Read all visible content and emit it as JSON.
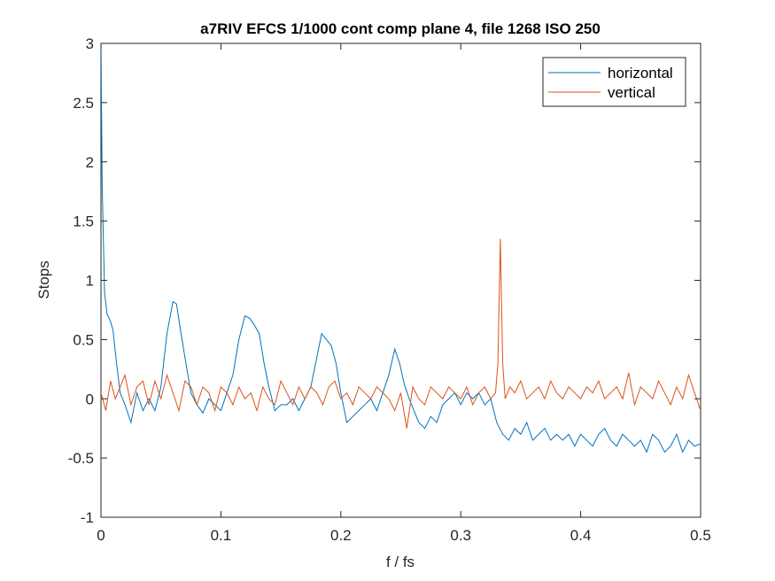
{
  "chart_data": {
    "type": "line",
    "title": "a7RIV EFCS 1/1000 cont comp plane 4, file 1268 ISO 250",
    "xlabel": "f / fs",
    "ylabel": "Stops",
    "xlim": [
      0,
      0.5
    ],
    "ylim": [
      -1,
      3
    ],
    "x_ticks": [
      0,
      0.1,
      0.2,
      0.3,
      0.4,
      0.5
    ],
    "x_tick_labels": [
      "0",
      "0.1",
      "0.2",
      "0.3",
      "0.4",
      "0.5"
    ],
    "y_ticks": [
      -1,
      -0.5,
      0,
      0.5,
      1,
      1.5,
      2,
      2.5,
      3
    ],
    "y_tick_labels": [
      "-1",
      "-0.5",
      "0",
      "0.5",
      "1",
      "1.5",
      "2",
      "2.5",
      "3"
    ],
    "grid": false,
    "legend_position": "top-right",
    "series": [
      {
        "name": "horizontal",
        "color": "#0072BD",
        "x": [
          0,
          0.001,
          0.003,
          0.005,
          0.008,
          0.01,
          0.013,
          0.016,
          0.02,
          0.025,
          0.03,
          0.035,
          0.04,
          0.045,
          0.05,
          0.055,
          0.06,
          0.063,
          0.066,
          0.07,
          0.075,
          0.08,
          0.085,
          0.09,
          0.095,
          0.1,
          0.105,
          0.11,
          0.115,
          0.12,
          0.124,
          0.128,
          0.132,
          0.136,
          0.14,
          0.145,
          0.15,
          0.155,
          0.16,
          0.165,
          0.17,
          0.175,
          0.18,
          0.184,
          0.188,
          0.192,
          0.196,
          0.2,
          0.205,
          0.21,
          0.215,
          0.22,
          0.225,
          0.23,
          0.235,
          0.24,
          0.245,
          0.249,
          0.253,
          0.257,
          0.261,
          0.265,
          0.27,
          0.275,
          0.28,
          0.285,
          0.29,
          0.295,
          0.3,
          0.305,
          0.31,
          0.315,
          0.32,
          0.325,
          0.33,
          0.335,
          0.34,
          0.345,
          0.35,
          0.355,
          0.36,
          0.365,
          0.37,
          0.375,
          0.38,
          0.385,
          0.39,
          0.395,
          0.4,
          0.405,
          0.41,
          0.415,
          0.42,
          0.425,
          0.43,
          0.435,
          0.44,
          0.445,
          0.45,
          0.455,
          0.46,
          0.465,
          0.47,
          0.475,
          0.48,
          0.485,
          0.49,
          0.495,
          0.5
        ],
        "y": [
          3,
          1.8,
          0.9,
          0.72,
          0.65,
          0.58,
          0.3,
          0.05,
          -0.05,
          -0.2,
          0.05,
          -0.1,
          0.0,
          -0.1,
          0.1,
          0.55,
          0.82,
          0.8,
          0.6,
          0.35,
          0.05,
          -0.05,
          -0.12,
          0.0,
          -0.05,
          -0.1,
          0.05,
          0.2,
          0.5,
          0.7,
          0.68,
          0.62,
          0.55,
          0.3,
          0.1,
          -0.1,
          -0.05,
          -0.05,
          0.0,
          -0.1,
          0.0,
          0.1,
          0.35,
          0.55,
          0.5,
          0.45,
          0.3,
          0.05,
          -0.2,
          -0.15,
          -0.1,
          -0.05,
          0.0,
          -0.1,
          0.05,
          0.2,
          0.42,
          0.3,
          0.12,
          0.0,
          -0.1,
          -0.2,
          -0.25,
          -0.15,
          -0.2,
          -0.05,
          0.0,
          0.05,
          -0.05,
          0.05,
          0.0,
          0.05,
          -0.05,
          0.0,
          -0.2,
          -0.3,
          -0.35,
          -0.25,
          -0.3,
          -0.2,
          -0.35,
          -0.3,
          -0.25,
          -0.35,
          -0.3,
          -0.35,
          -0.3,
          -0.4,
          -0.3,
          -0.35,
          -0.4,
          -0.3,
          -0.25,
          -0.35,
          -0.4,
          -0.3,
          -0.35,
          -0.4,
          -0.35,
          -0.45,
          -0.3,
          -0.35,
          -0.45,
          -0.4,
          -0.3,
          -0.45,
          -0.35,
          -0.4,
          -0.38
        ]
      },
      {
        "name": "vertical",
        "color": "#D95319",
        "x": [
          0,
          0.004,
          0.008,
          0.012,
          0.016,
          0.02,
          0.025,
          0.03,
          0.035,
          0.04,
          0.045,
          0.05,
          0.055,
          0.06,
          0.065,
          0.07,
          0.075,
          0.08,
          0.085,
          0.09,
          0.095,
          0.1,
          0.105,
          0.11,
          0.115,
          0.12,
          0.125,
          0.13,
          0.135,
          0.14,
          0.145,
          0.15,
          0.155,
          0.16,
          0.165,
          0.17,
          0.175,
          0.18,
          0.185,
          0.19,
          0.195,
          0.2,
          0.205,
          0.21,
          0.215,
          0.22,
          0.225,
          0.23,
          0.235,
          0.24,
          0.245,
          0.25,
          0.255,
          0.26,
          0.265,
          0.27,
          0.275,
          0.28,
          0.285,
          0.29,
          0.295,
          0.3,
          0.305,
          0.31,
          0.315,
          0.32,
          0.325,
          0.329,
          0.331,
          0.333,
          0.335,
          0.337,
          0.341,
          0.345,
          0.35,
          0.355,
          0.36,
          0.365,
          0.37,
          0.375,
          0.38,
          0.385,
          0.39,
          0.395,
          0.4,
          0.405,
          0.41,
          0.415,
          0.42,
          0.425,
          0.43,
          0.435,
          0.44,
          0.445,
          0.45,
          0.455,
          0.46,
          0.465,
          0.47,
          0.475,
          0.48,
          0.485,
          0.49,
          0.495,
          0.5
        ],
        "y": [
          0.05,
          -0.1,
          0.15,
          0.0,
          0.1,
          0.2,
          -0.05,
          0.1,
          0.15,
          -0.05,
          0.15,
          0.0,
          0.2,
          0.05,
          -0.1,
          0.15,
          0.1,
          -0.05,
          0.1,
          0.05,
          -0.1,
          0.1,
          0.05,
          -0.05,
          0.1,
          0.0,
          0.05,
          -0.1,
          0.1,
          0.0,
          -0.05,
          0.15,
          0.05,
          -0.05,
          0.1,
          0.0,
          0.1,
          0.05,
          -0.05,
          0.1,
          0.15,
          0.0,
          0.05,
          -0.05,
          0.1,
          0.05,
          0.0,
          0.1,
          0.05,
          0.0,
          -0.1,
          0.05,
          -0.25,
          0.1,
          0.0,
          -0.05,
          0.1,
          0.05,
          0.0,
          0.1,
          0.05,
          0.0,
          0.1,
          -0.05,
          0.05,
          0.1,
          0.0,
          0.05,
          0.3,
          1.35,
          0.3,
          0.0,
          0.1,
          0.05,
          0.15,
          0.0,
          0.05,
          0.1,
          0.0,
          0.15,
          0.05,
          0.0,
          0.1,
          0.05,
          0.0,
          0.1,
          0.05,
          0.15,
          0.0,
          0.05,
          0.1,
          0.0,
          0.22,
          -0.05,
          0.1,
          0.05,
          0.0,
          0.15,
          0.05,
          -0.05,
          0.1,
          0.0,
          0.2,
          0.05,
          -0.1
        ]
      }
    ]
  }
}
